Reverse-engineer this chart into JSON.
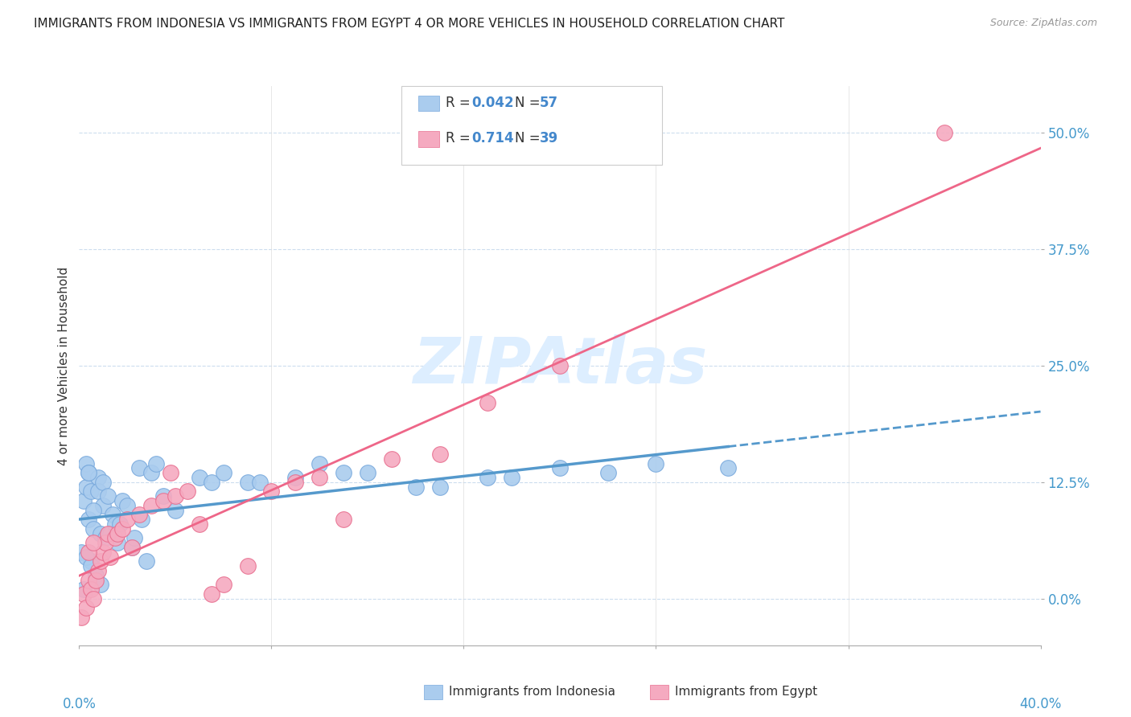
{
  "title": "IMMIGRANTS FROM INDONESIA VS IMMIGRANTS FROM EGYPT 4 OR MORE VEHICLES IN HOUSEHOLD CORRELATION CHART",
  "source": "Source: ZipAtlas.com",
  "ylabel": "4 or more Vehicles in Household",
  "ytick_vals": [
    0.0,
    12.5,
    25.0,
    37.5,
    50.0
  ],
  "xlim": [
    0.0,
    40.0
  ],
  "ylim": [
    -5.0,
    55.0
  ],
  "indonesia_R": "0.042",
  "indonesia_N": "57",
  "egypt_R": "0.714",
  "egypt_N": "39",
  "indonesia_color": "#aaccee",
  "egypt_color": "#f5aac0",
  "indonesia_edge_color": "#7aaadd",
  "egypt_edge_color": "#e87090",
  "indonesia_line_color": "#5599cc",
  "egypt_line_color": "#ee6688",
  "watermark_color": "#ddeeff",
  "legend_val_color": "#4488cc",
  "legend_label_color": "#333333",
  "indo_x": [
    0.2,
    0.3,
    0.3,
    0.4,
    0.4,
    0.5,
    0.5,
    0.6,
    0.7,
    0.8,
    0.8,
    0.9,
    1.0,
    1.0,
    1.1,
    1.2,
    1.3,
    1.4,
    1.5,
    1.6,
    1.7,
    1.8,
    2.0,
    2.2,
    2.3,
    2.5,
    2.6,
    2.8,
    3.0,
    3.2,
    3.5,
    4.0,
    5.0,
    5.5,
    6.0,
    7.0,
    7.5,
    9.0,
    10.0,
    11.0,
    12.0,
    14.0,
    15.0,
    17.0,
    18.0,
    20.0,
    22.0,
    24.0,
    27.0,
    0.1,
    0.2,
    0.3,
    0.4,
    0.5,
    0.6,
    0.7,
    0.9
  ],
  "indo_y": [
    10.5,
    12.0,
    14.5,
    13.5,
    8.5,
    11.5,
    4.0,
    7.5,
    2.5,
    13.0,
    11.5,
    7.0,
    12.5,
    10.0,
    6.5,
    11.0,
    7.0,
    9.0,
    8.0,
    6.0,
    8.0,
    10.5,
    10.0,
    5.5,
    6.5,
    14.0,
    8.5,
    4.0,
    13.5,
    14.5,
    11.0,
    9.5,
    13.0,
    12.5,
    13.5,
    12.5,
    12.5,
    13.0,
    14.5,
    13.5,
    13.5,
    12.0,
    12.0,
    13.0,
    13.0,
    14.0,
    13.5,
    14.5,
    14.0,
    5.0,
    1.0,
    4.5,
    13.5,
    3.5,
    9.5,
    2.5,
    1.5
  ],
  "egy_x": [
    0.1,
    0.2,
    0.3,
    0.4,
    0.5,
    0.6,
    0.7,
    0.8,
    0.9,
    1.0,
    1.1,
    1.2,
    1.3,
    1.5,
    1.6,
    1.8,
    2.0,
    2.2,
    2.5,
    3.0,
    3.5,
    3.8,
    4.0,
    4.5,
    5.0,
    5.5,
    6.0,
    7.0,
    8.0,
    9.0,
    10.0,
    11.0,
    13.0,
    15.0,
    17.0,
    20.0,
    36.0,
    0.4,
    0.6
  ],
  "egy_y": [
    -2.0,
    0.5,
    -1.0,
    2.0,
    1.0,
    0.0,
    2.0,
    3.0,
    4.0,
    5.0,
    6.0,
    7.0,
    4.5,
    6.5,
    7.0,
    7.5,
    8.5,
    5.5,
    9.0,
    10.0,
    10.5,
    13.5,
    11.0,
    11.5,
    8.0,
    0.5,
    1.5,
    3.5,
    11.5,
    12.5,
    13.0,
    8.5,
    15.0,
    15.5,
    21.0,
    25.0,
    50.0,
    5.0,
    6.0
  ]
}
